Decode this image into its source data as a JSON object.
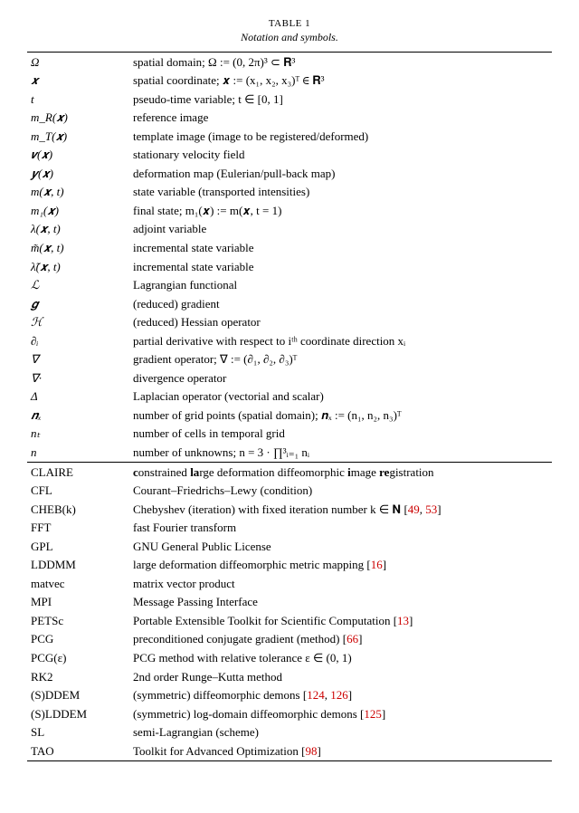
{
  "table_label": "TABLE 1",
  "table_caption": "Notation and symbols.",
  "symbols": [
    {
      "sym": "Ω",
      "desc": "spatial domain; Ω := (0, 2π)³ ⊂ 𝐑³"
    },
    {
      "sym": "𝒙",
      "desc": "spatial coordinate; 𝒙 := (x₁, x₂, x₃)ᵀ ∈ 𝐑³"
    },
    {
      "sym": "t",
      "desc": "pseudo-time variable; t ∈ [0, 1]"
    },
    {
      "sym": "m_R(𝒙)",
      "desc": "reference image"
    },
    {
      "sym": "m_T(𝒙)",
      "desc": "template image (image to be registered/deformed)"
    },
    {
      "sym": "𝒗(𝒙)",
      "desc": "stationary velocity field"
    },
    {
      "sym": "𝒚(𝒙)",
      "desc": "deformation map (Eulerian/pull-back map)"
    },
    {
      "sym": "m(𝒙, t)",
      "desc": "state variable (transported intensities)"
    },
    {
      "sym": "m₁(𝒙)",
      "desc": "final state; m₁(𝒙) := m(𝒙, t = 1)"
    },
    {
      "sym": "λ(𝒙, t)",
      "desc": "adjoint variable"
    },
    {
      "sym": "m̃(𝒙, t)",
      "desc": "incremental state variable"
    },
    {
      "sym": "λ̃(𝒙, t)",
      "desc": "incremental state variable"
    },
    {
      "sym": "ℒ",
      "desc": "Lagrangian functional"
    },
    {
      "sym": "𝒈",
      "desc": "(reduced) gradient"
    },
    {
      "sym": "ℋ",
      "desc": "(reduced) Hessian operator"
    },
    {
      "sym": "∂ᵢ",
      "desc": "partial derivative with respect to iᵗʰ coordinate direction xᵢ"
    },
    {
      "sym": "∇",
      "desc": "gradient operator; ∇ := (∂₁, ∂₂, ∂₃)ᵀ"
    },
    {
      "sym": "∇·",
      "desc": "divergence operator"
    },
    {
      "sym": "Δ",
      "desc": "Laplacian operator (vectorial and scalar)"
    },
    {
      "sym": "𝒏ₓ",
      "desc": "number of grid points (spatial domain); 𝒏ₓ := (n₁, n₂, n₃)ᵀ"
    },
    {
      "sym": "nₜ",
      "desc": "number of cells in temporal grid"
    },
    {
      "sym": "n",
      "desc": "number of unknowns; n = 3 · ∏³ᵢ₌₁ nᵢ"
    }
  ],
  "acronyms": [
    {
      "sym": "CLAIRE",
      "desc": "constrained large deformation diffeomorphic image registration",
      "bold_desc": true
    },
    {
      "sym": "CFL",
      "desc": "Courant–Friedrichs–Lewy (condition)"
    },
    {
      "sym": "CHEB(k)",
      "desc": "Chebyshev (iteration) with fixed iteration number k ∈ 𝐍 ",
      "refs": "[49, 53]"
    },
    {
      "sym": "FFT",
      "desc": "fast Fourier transform"
    },
    {
      "sym": "GPL",
      "desc": "GNU General Public License"
    },
    {
      "sym": "LDDMM",
      "desc": "large deformation diffeomorphic metric mapping ",
      "refs": "[16]"
    },
    {
      "sym": "matvec",
      "desc": "matrix vector product"
    },
    {
      "sym": "MPI",
      "desc": "Message Passing Interface"
    },
    {
      "sym": "PETSc",
      "desc": "Portable Extensible Toolkit for Scientific Computation ",
      "refs": "[13]"
    },
    {
      "sym": "PCG",
      "desc": "preconditioned conjugate gradient (method) ",
      "refs": "[66]"
    },
    {
      "sym": "PCG(ε)",
      "desc": "PCG method with relative tolerance ε ∈ (0, 1)"
    },
    {
      "sym": "RK2",
      "desc": "2nd order Runge–Kutta method"
    },
    {
      "sym": "(S)DDEM",
      "desc": "(symmetric) diffeomorphic demons ",
      "refs": "[124, 126]"
    },
    {
      "sym": "(S)LDDEM",
      "desc": "(symmetric) log-domain diffeomorphic demons ",
      "refs": "[125]"
    },
    {
      "sym": "SL",
      "desc": "semi-Lagrangian (scheme)"
    },
    {
      "sym": "TAO",
      "desc": "Toolkit for Advanced Optimization ",
      "refs": "[98]"
    }
  ]
}
